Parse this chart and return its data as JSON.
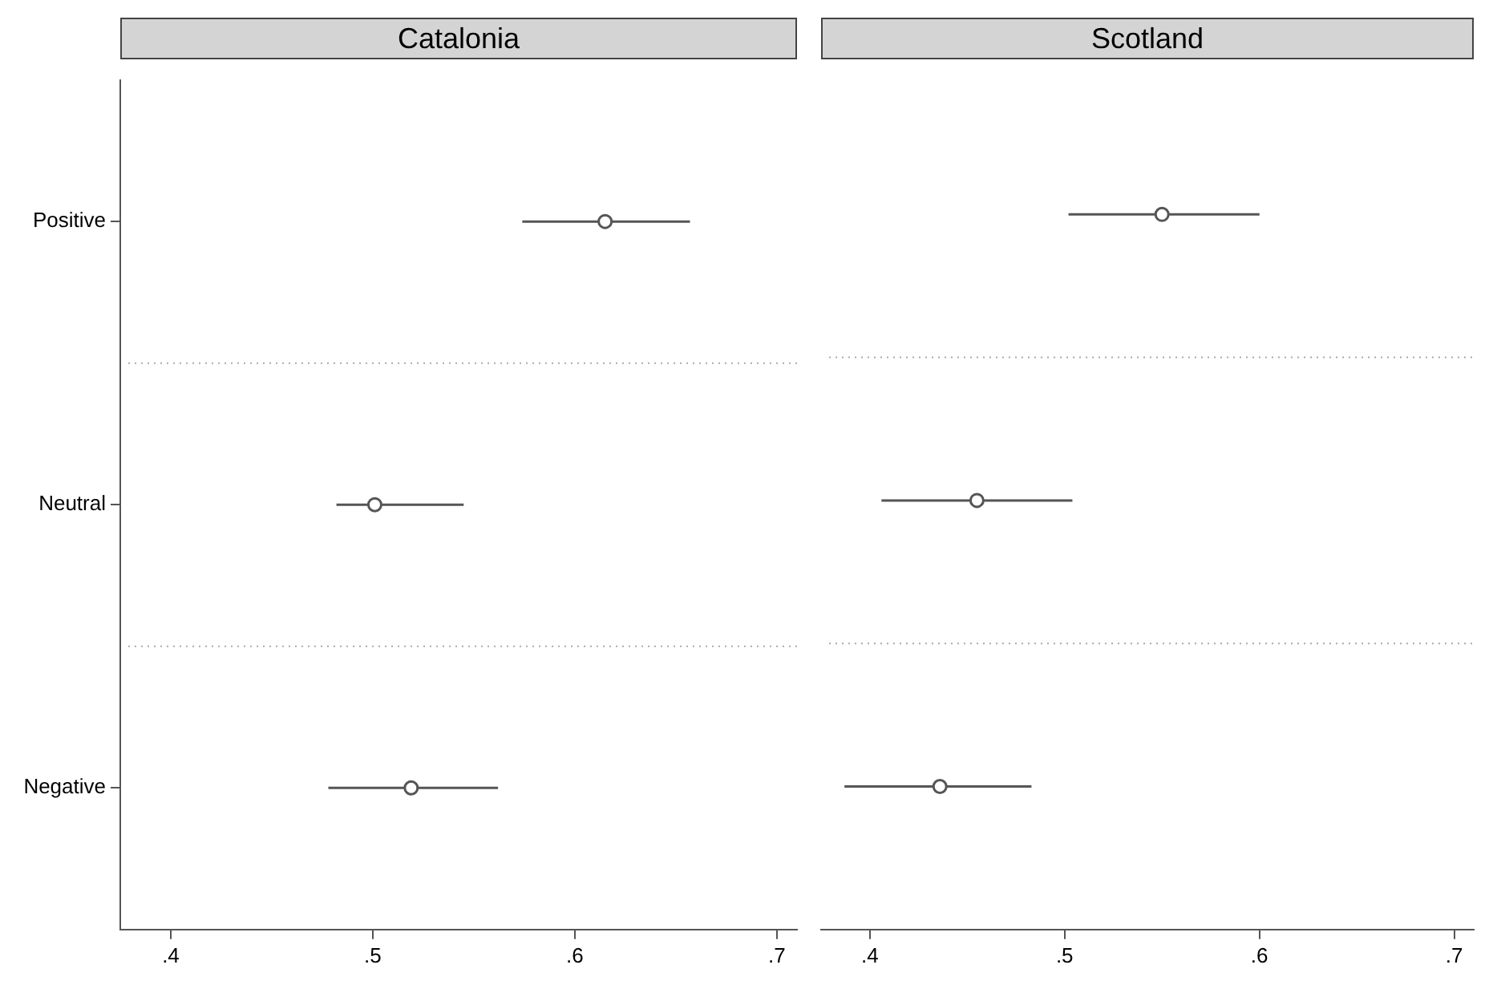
{
  "chart_data": [
    {
      "type": "scatter",
      "title": "Catalonia",
      "categories": [
        "Positive",
        "Neutral",
        "Negative"
      ],
      "orientation": "horizontal",
      "values": [
        0.615,
        0.501,
        0.519
      ],
      "errors": [
        [
          0.574,
          0.657
        ],
        [
          0.482,
          0.545
        ],
        [
          0.478,
          0.562
        ]
      ],
      "color": "#555555",
      "marker": "circle",
      "xlim": [
        0.375,
        0.71
      ],
      "xticks": [
        {
          "value": 0.4,
          "label": ".4"
        },
        {
          "value": 0.5,
          "label": ".5"
        },
        {
          "value": 0.6,
          "label": ".6"
        },
        {
          "value": 0.7,
          "label": ".7"
        }
      ],
      "grid": "y"
    },
    {
      "type": "scatter",
      "title": "Scotland",
      "categories": [
        null,
        null,
        null
      ],
      "orientation": "horizontal",
      "values": [
        0.55,
        0.455,
        0.436
      ],
      "errors": [
        [
          0.502,
          0.6
        ],
        [
          0.406,
          0.504
        ],
        [
          0.387,
          0.483
        ]
      ],
      "color": "#555555",
      "marker": "circle",
      "xlim": [
        0.375,
        0.71
      ],
      "xticks": [
        {
          "value": 0.4,
          "label": ".4"
        },
        {
          "value": 0.5,
          "label": ".5"
        },
        {
          "value": 0.6,
          "label": ".6"
        },
        {
          "value": 0.7,
          "label": ".7"
        }
      ],
      "grid": "y",
      "tick_labels": "x"
    }
  ]
}
